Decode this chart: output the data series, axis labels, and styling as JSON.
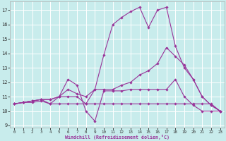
{
  "xlabel": "Windchill (Refroidissement éolien,°C)",
  "bg_color": "#c8ecec",
  "line_color": "#993399",
  "xlim": [
    -0.5,
    23.5
  ],
  "ylim": [
    8.85,
    17.6
  ],
  "yticks": [
    9,
    10,
    11,
    12,
    13,
    14,
    15,
    16,
    17
  ],
  "xticks": [
    0,
    1,
    2,
    3,
    4,
    5,
    6,
    7,
    8,
    9,
    10,
    11,
    12,
    13,
    14,
    15,
    16,
    17,
    18,
    19,
    20,
    21,
    22,
    23
  ],
  "grid_color": "#ffffff",
  "series": [
    [
      10.5,
      10.6,
      10.6,
      10.7,
      10.5,
      10.5,
      10.5,
      10.5,
      10.5,
      10.5,
      10.5,
      10.5,
      10.5,
      10.5,
      10.5,
      10.5,
      10.5,
      10.5,
      10.5,
      10.5,
      10.5,
      10.5,
      10.5,
      10.0
    ],
    [
      10.5,
      10.6,
      10.7,
      10.8,
      10.5,
      11.0,
      12.2,
      11.8,
      10.0,
      9.3,
      11.4,
      11.4,
      11.4,
      11.5,
      11.5,
      11.5,
      11.5,
      11.5,
      12.2,
      11.0,
      10.4,
      10.0,
      10.0,
      10.0
    ],
    [
      10.5,
      10.6,
      10.7,
      10.8,
      10.8,
      11.0,
      11.5,
      11.2,
      11.0,
      11.5,
      11.5,
      11.5,
      11.8,
      12.0,
      12.5,
      12.8,
      13.3,
      14.4,
      13.8,
      13.2,
      12.2,
      11.0,
      10.4,
      10.0
    ],
    [
      10.5,
      10.6,
      10.7,
      10.8,
      10.8,
      11.0,
      11.0,
      11.0,
      10.5,
      11.5,
      13.9,
      16.0,
      16.5,
      16.9,
      17.2,
      15.8,
      17.0,
      17.2,
      14.5,
      13.0,
      12.2,
      11.0,
      10.4,
      10.0
    ]
  ]
}
